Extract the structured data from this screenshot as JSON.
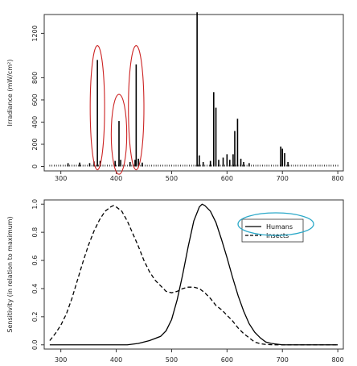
{
  "chart_data": [
    {
      "type": "bar",
      "title": "",
      "xlabel": "",
      "ylabel": "Irradiance (mW/cm²)",
      "xlim": [
        270,
        810
      ],
      "ylim": [
        -40,
        1370
      ],
      "x_ticks": [
        "300",
        "400",
        "500",
        "600",
        "700",
        "800"
      ],
      "y_ticks": [
        "0",
        "200",
        "400",
        "600",
        "800",
        "1200"
      ],
      "y_tick_values": [
        0,
        200,
        400,
        600,
        800,
        1200
      ],
      "baseline_range": [
        280,
        800
      ],
      "baseline_spacing": 4,
      "baseline_value": 15,
      "peaks": [
        {
          "x": 313,
          "y": 30
        },
        {
          "x": 334,
          "y": 35
        },
        {
          "x": 352,
          "y": 30
        },
        {
          "x": 360,
          "y": 45
        },
        {
          "x": 366,
          "y": 960
        },
        {
          "x": 371,
          "y": 50
        },
        {
          "x": 398,
          "y": 50
        },
        {
          "x": 405,
          "y": 410
        },
        {
          "x": 408,
          "y": 60
        },
        {
          "x": 425,
          "y": 40
        },
        {
          "x": 434,
          "y": 60
        },
        {
          "x": 436,
          "y": 920
        },
        {
          "x": 440,
          "y": 70
        },
        {
          "x": 447,
          "y": 35
        },
        {
          "x": 546,
          "y": 1390
        },
        {
          "x": 550,
          "y": 100
        },
        {
          "x": 557,
          "y": 40
        },
        {
          "x": 570,
          "y": 50
        },
        {
          "x": 576,
          "y": 670
        },
        {
          "x": 580,
          "y": 530
        },
        {
          "x": 585,
          "y": 60
        },
        {
          "x": 593,
          "y": 80
        },
        {
          "x": 600,
          "y": 110
        },
        {
          "x": 605,
          "y": 60
        },
        {
          "x": 611,
          "y": 110
        },
        {
          "x": 614,
          "y": 320
        },
        {
          "x": 619,
          "y": 430
        },
        {
          "x": 625,
          "y": 70
        },
        {
          "x": 630,
          "y": 40
        },
        {
          "x": 640,
          "y": 30
        },
        {
          "x": 697,
          "y": 180
        },
        {
          "x": 700,
          "y": 160
        },
        {
          "x": 704,
          "y": 120
        },
        {
          "x": 710,
          "y": 40
        }
      ],
      "annotations": [
        {
          "type": "ellipse",
          "cx": 366,
          "cy": 530,
          "rx": 13,
          "ry": 560,
          "color": "#cc2222"
        },
        {
          "type": "ellipse",
          "cx": 405,
          "cy": 290,
          "rx": 14,
          "ry": 360,
          "color": "#cc2222"
        },
        {
          "type": "ellipse",
          "cx": 436,
          "cy": 530,
          "rx": 14,
          "ry": 560,
          "color": "#cc2222"
        }
      ]
    },
    {
      "type": "line",
      "title": "",
      "xlabel": "",
      "ylabel": "Sensitivity (in relation to maximum)",
      "xlim": [
        270,
        810
      ],
      "ylim": [
        -0.03,
        1.03
      ],
      "x_ticks": [
        "300",
        "400",
        "500",
        "600",
        "700",
        "800"
      ],
      "y_ticks": [
        "0.0",
        "0.2",
        "0.4",
        "0.6",
        "0.8",
        "1.0"
      ],
      "y_tick_values": [
        0,
        0.2,
        0.4,
        0.6,
        0.8,
        1.0
      ],
      "legend": {
        "position": "top-right",
        "entries": [
          "Humans",
          "Insects"
        ],
        "highlight_color": "#2aa8c8"
      },
      "series": [
        {
          "name": "Humans",
          "style": "solid",
          "x": [
            280,
            400,
            420,
            440,
            460,
            480,
            490,
            500,
            510,
            520,
            530,
            540,
            550,
            555,
            560,
            570,
            580,
            590,
            600,
            610,
            620,
            630,
            640,
            650,
            660,
            670,
            680,
            690,
            700,
            720,
            800
          ],
          "y": [
            0,
            0,
            0,
            0.01,
            0.03,
            0.06,
            0.1,
            0.18,
            0.32,
            0.5,
            0.7,
            0.88,
            0.98,
            1.0,
            0.99,
            0.95,
            0.87,
            0.75,
            0.62,
            0.48,
            0.35,
            0.24,
            0.15,
            0.09,
            0.05,
            0.02,
            0.01,
            0.005,
            0,
            0,
            0
          ]
        },
        {
          "name": "Insects",
          "style": "dashed",
          "x": [
            280,
            290,
            300,
            310,
            320,
            330,
            340,
            350,
            360,
            370,
            380,
            390,
            395,
            400,
            410,
            420,
            430,
            440,
            450,
            460,
            470,
            480,
            490,
            500,
            510,
            520,
            530,
            540,
            550,
            560,
            570,
            580,
            590,
            600,
            610,
            620,
            630,
            640,
            650,
            660,
            670,
            680,
            690,
            700,
            720,
            800
          ],
          "y": [
            0.03,
            0.08,
            0.14,
            0.22,
            0.33,
            0.46,
            0.59,
            0.71,
            0.81,
            0.89,
            0.95,
            0.98,
            0.99,
            0.98,
            0.95,
            0.88,
            0.79,
            0.7,
            0.6,
            0.52,
            0.46,
            0.42,
            0.38,
            0.37,
            0.38,
            0.4,
            0.41,
            0.41,
            0.4,
            0.37,
            0.33,
            0.28,
            0.25,
            0.21,
            0.17,
            0.12,
            0.08,
            0.05,
            0.02,
            0.008,
            0.003,
            0.001,
            0,
            0,
            0,
            0
          ]
        }
      ]
    }
  ]
}
